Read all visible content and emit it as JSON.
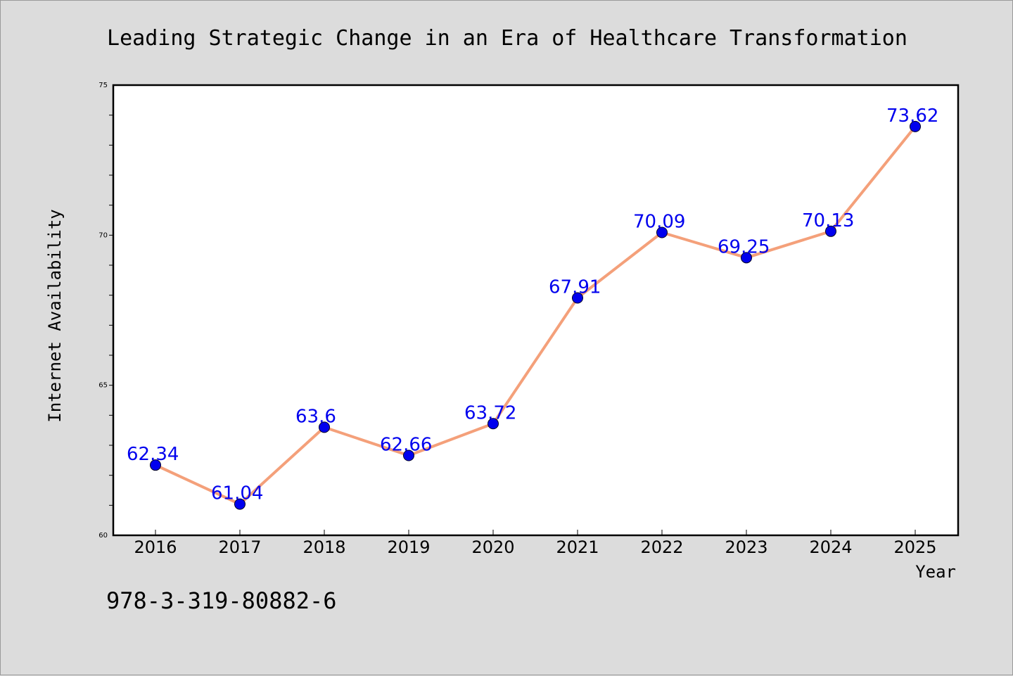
{
  "chart_data": {
    "type": "line",
    "title": "Leading Strategic Change in an Era of Healthcare Transformation",
    "xlabel": "Year",
    "ylabel": "Internet Availability",
    "categories": [
      "2016",
      "2017",
      "2018",
      "2019",
      "2020",
      "2021",
      "2022",
      "2023",
      "2024",
      "2025"
    ],
    "series": [
      {
        "values": [
          62.34,
          61.04,
          63.6,
          62.66,
          63.72,
          67.91,
          70.09,
          69.25,
          70.13,
          73.62
        ],
        "data_labels": [
          "62.34",
          "61.04",
          "63.6",
          "62.66",
          "63.72",
          "67.91",
          "70.09",
          "69.25",
          "70.13",
          "73.62"
        ]
      }
    ],
    "ylim": [
      60,
      75
    ],
    "y_major_ticks": [
      "60",
      "65",
      "70",
      "75"
    ],
    "grid": false,
    "legend": "none",
    "colors": {
      "line": "#f4a07a",
      "marker": "#0000ee",
      "data_label": "#0000ee",
      "background": "#dcdcdc",
      "plot_background": "#ffffff"
    }
  },
  "footer": {
    "code": "978-3-319-80882-6"
  }
}
